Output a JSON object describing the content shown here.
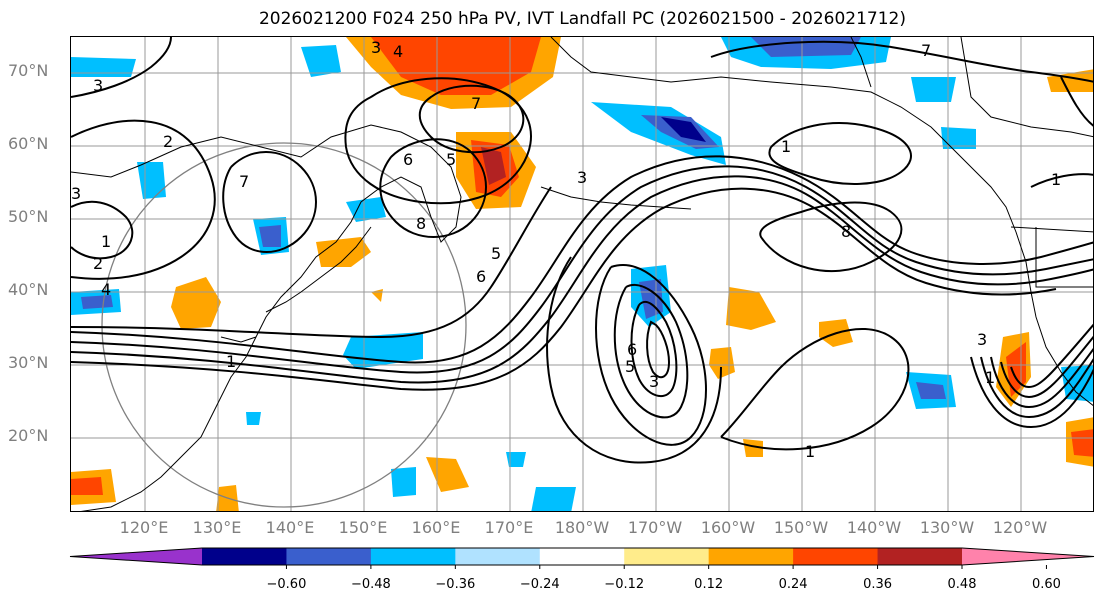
{
  "title": "2026021200 F024 250 hPa PV, IVT Landfall PC (2026021500 - 2026021712)",
  "map": {
    "lat_labels": [
      "70°N",
      "60°N",
      "50°N",
      "40°N",
      "30°N",
      "20°N"
    ],
    "lon_labels": [
      "120°E",
      "130°E",
      "140°E",
      "150°E",
      "160°E",
      "170°E",
      "180°W",
      "170°W",
      "160°W",
      "150°W",
      "140°W",
      "130°W",
      "120°W"
    ],
    "contour_labels": [
      "3",
      "4",
      "7",
      "7",
      "3",
      "2",
      "1",
      "2",
      "4",
      "1",
      "7",
      "3",
      "6",
      "5",
      "8",
      "6",
      "5",
      "3",
      "8",
      "1",
      "6",
      "5",
      "1",
      "3",
      "1",
      "3",
      "1"
    ],
    "colors": {
      "grid": "#999999",
      "coast": "#000000",
      "contour": "#000000",
      "circle": "#808080"
    }
  },
  "colorbar": {
    "tick_labels": [
      "−0.60",
      "−0.48",
      "−0.36",
      "−0.24",
      "−0.12",
      "0.12",
      "0.24",
      "0.36",
      "0.48",
      "0.60"
    ],
    "colors": [
      "#9932cc",
      "#00008b",
      "#3a5fcd",
      "#00bfff",
      "#b0e2ff",
      "#ffffff",
      "#ffec8b",
      "#ffa500",
      "#ff4500",
      "#b22222",
      "#ff82ab"
    ]
  }
}
